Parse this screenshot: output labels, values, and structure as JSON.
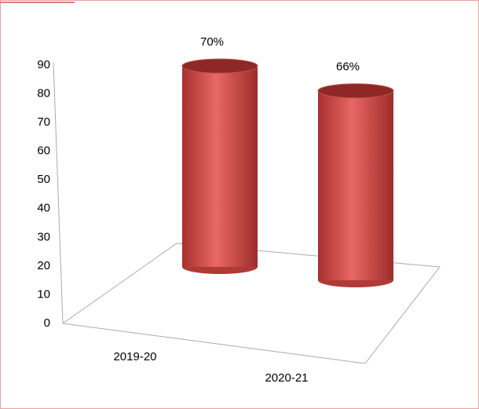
{
  "chart_data": {
    "type": "cylinder",
    "categories": [
      "2019-20",
      "2020-21"
    ],
    "values": [
      70,
      66
    ],
    "value_labels": [
      "70%",
      "66%"
    ],
    "color": "#c0504d",
    "ylim": [
      0,
      90
    ],
    "yticks": [
      0,
      10,
      20,
      30,
      40,
      50,
      60,
      70,
      80,
      90
    ]
  }
}
